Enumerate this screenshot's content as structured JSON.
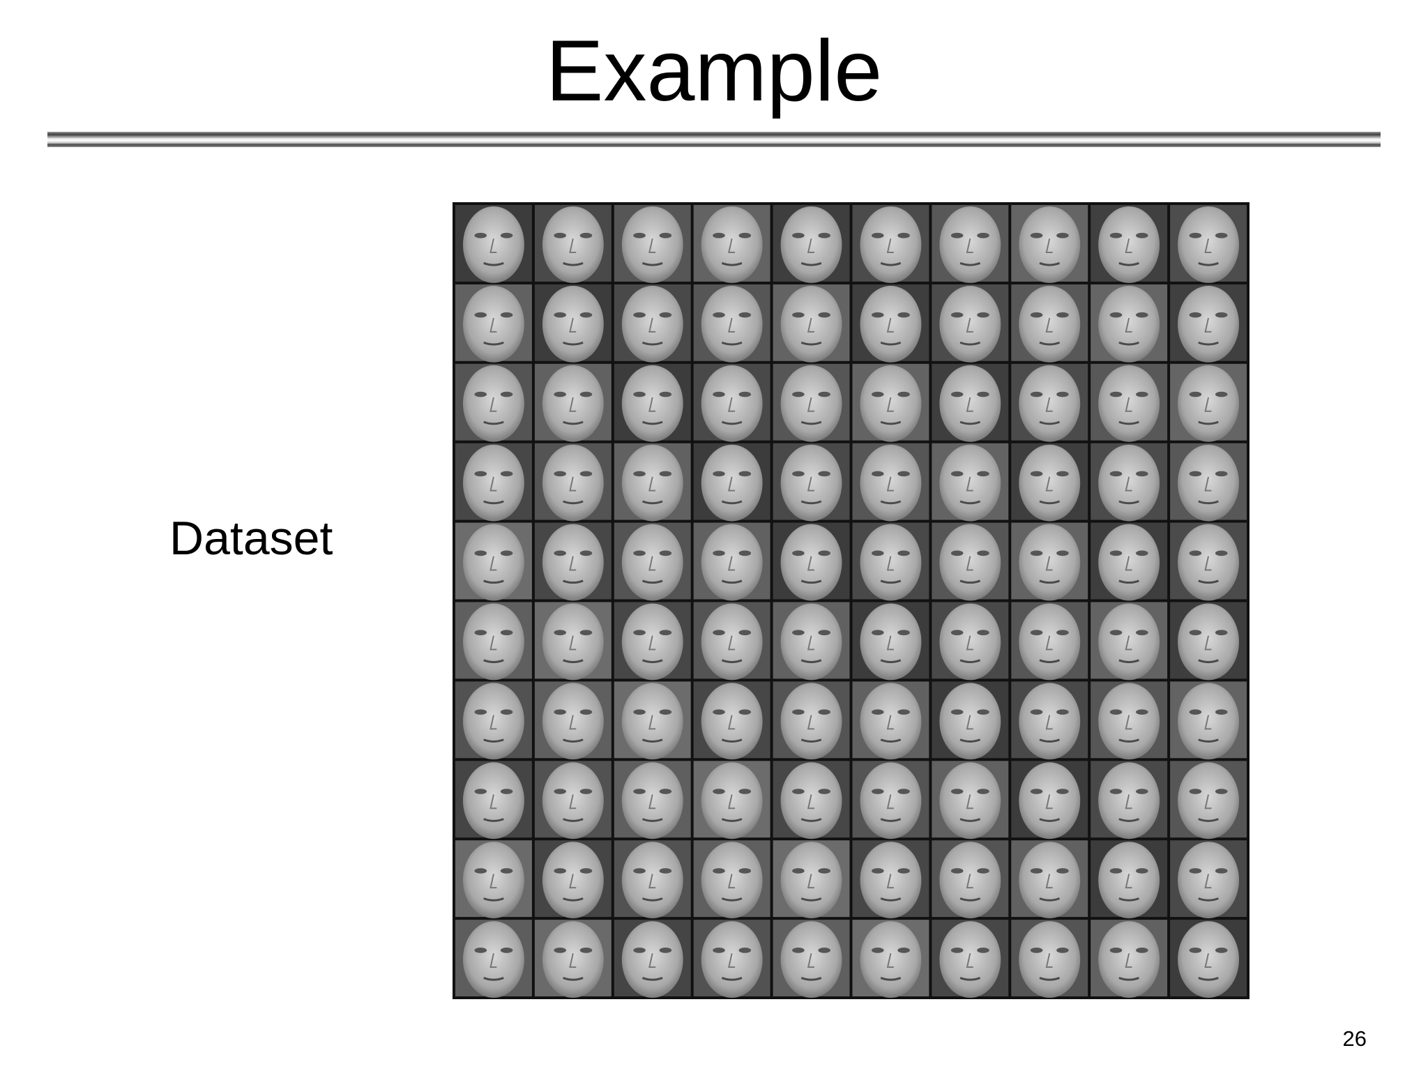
{
  "slide": {
    "title": "Example",
    "label": "Dataset",
    "page_number": 26
  }
}
